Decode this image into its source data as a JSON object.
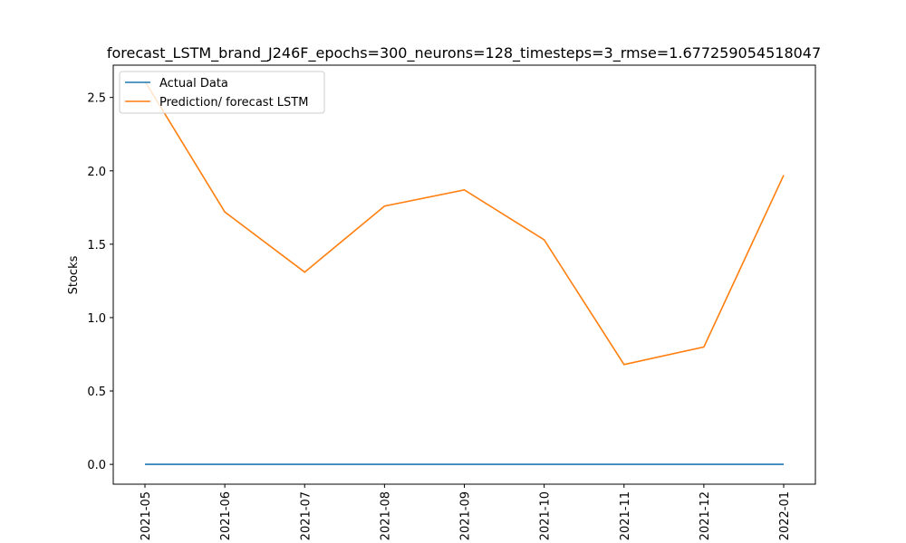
{
  "chart_data": {
    "type": "line",
    "title": "forecast_LSTM_brand_J246F_epochs=300_neurons=128_timesteps=3_rmse=1.677259054518047",
    "xlabel": "",
    "ylabel": "Stocks",
    "x": [
      "2021-05",
      "2021-06",
      "2021-07",
      "2021-08",
      "2021-09",
      "2021-10",
      "2021-11",
      "2021-12",
      "2022-01"
    ],
    "ylim": [
      -0.135,
      2.72
    ],
    "yticks": [
      "0.0",
      "0.5",
      "1.0",
      "1.5",
      "2.0",
      "2.5"
    ],
    "grid": false,
    "legend_position": "top-left",
    "series": [
      {
        "name": "Actual Data",
        "color": "#1f77b4",
        "values": [
          0,
          0,
          0,
          0,
          0,
          0,
          0,
          0,
          0
        ]
      },
      {
        "name": "Prediction/ forecast LSTM",
        "color": "#ff7f0e",
        "values": [
          2.61,
          1.72,
          1.31,
          1.76,
          1.87,
          1.53,
          0.68,
          0.8,
          1.97
        ]
      }
    ]
  }
}
